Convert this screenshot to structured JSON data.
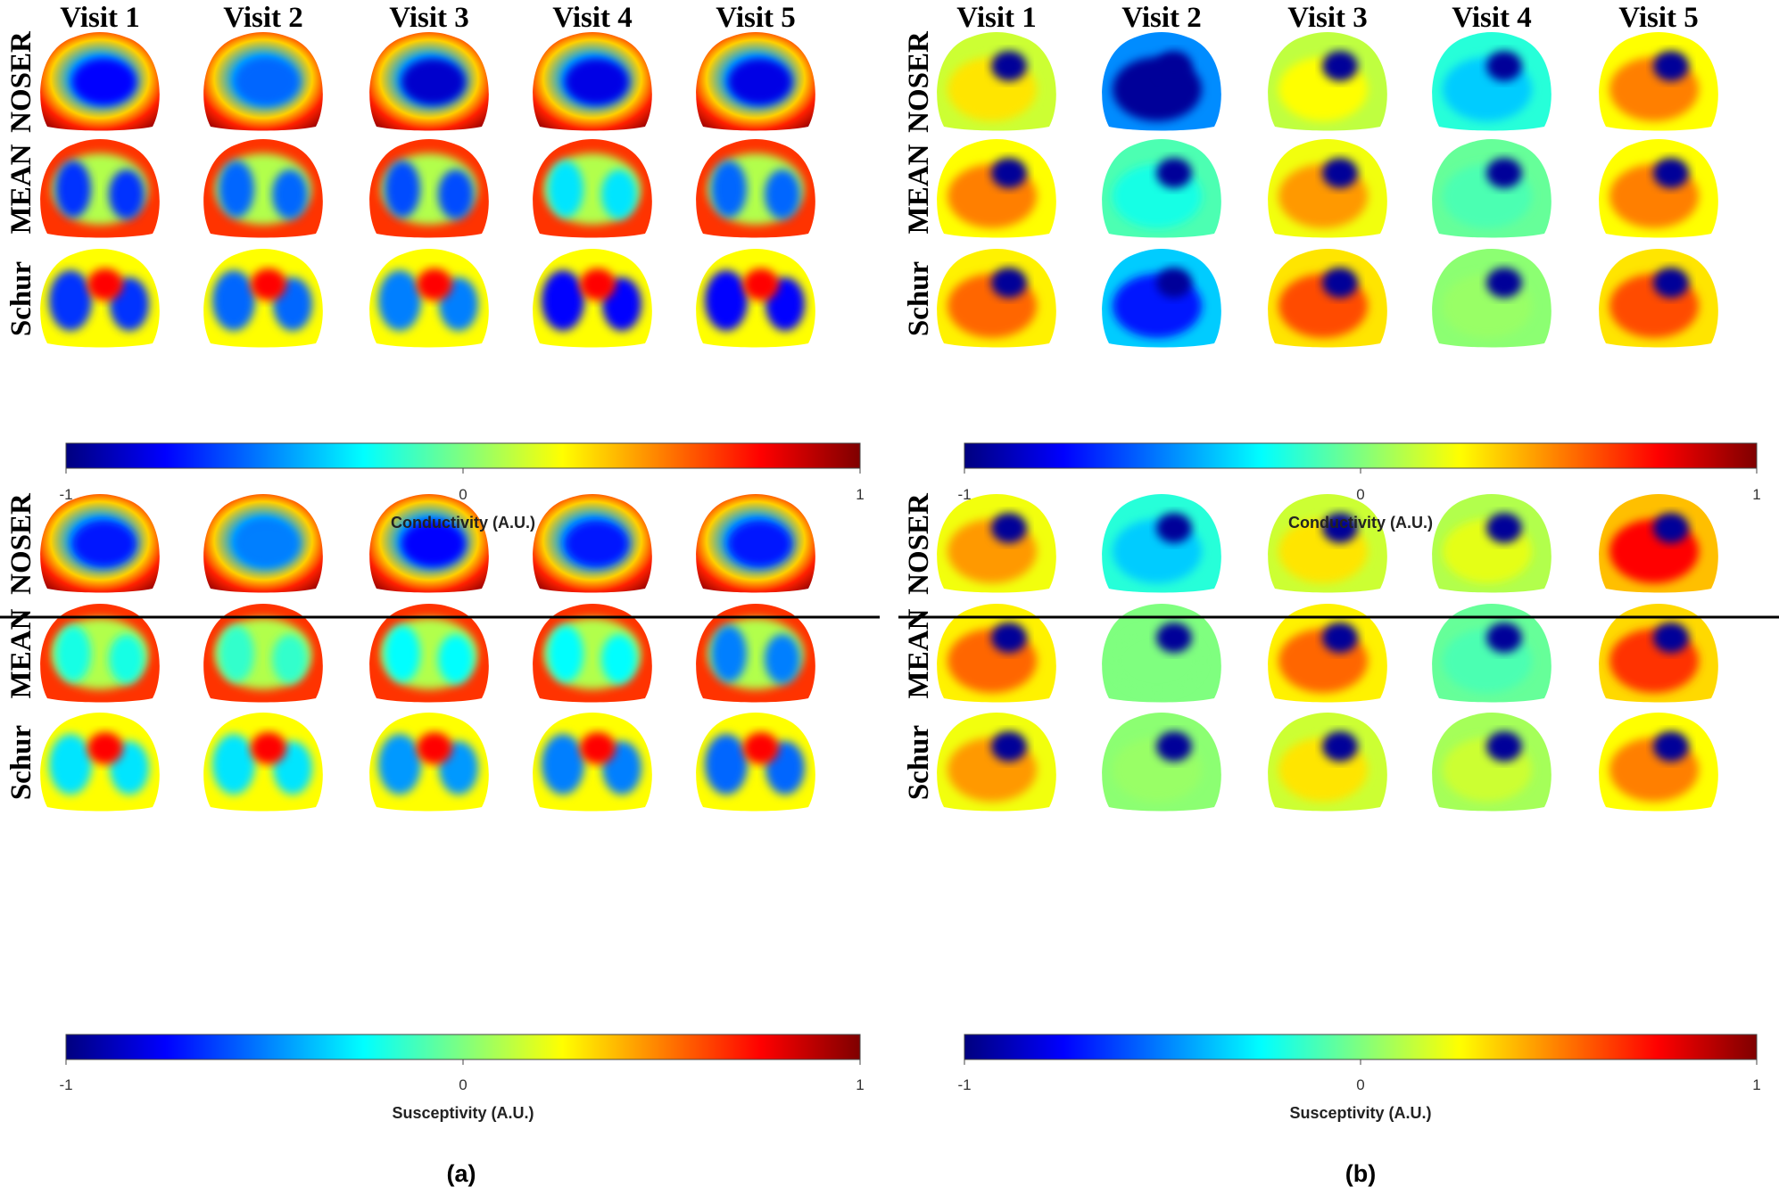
{
  "figure": {
    "visit_headers": [
      "Visit 1",
      "Visit 2",
      "Visit 3",
      "Visit 4",
      "Visit 5"
    ],
    "row_labels": [
      "NOSER",
      "MEAN",
      "Schur"
    ],
    "panel_labels": [
      "(a)",
      "(b)"
    ],
    "colormap": "jet",
    "colormap_stops": [
      "#00007f",
      "#0000ff",
      "#007fff",
      "#00ffff",
      "#7fff7f",
      "#ffff00",
      "#ff7f00",
      "#ff0000",
      "#7f0000"
    ],
    "colorbar_ticks": [
      "-1",
      "0",
      "1"
    ],
    "colorbar_range": [
      -1,
      1
    ],
    "quadrants": [
      {
        "panel": "a",
        "quantity": "Conductivity (A.U.)",
        "images": [
          [
            "ring-hot",
            "ring-hot",
            "ring-hot",
            "ring-hot",
            "ring-hot"
          ],
          [
            "lungs-cool",
            "lungs-cool",
            "lungs-cool",
            "lungs-cool",
            "lungs-cool"
          ],
          [
            "heart-hot",
            "heart-hot",
            "heart-hot",
            "heart-hot",
            "heart-hot"
          ]
        ]
      },
      {
        "panel": "b",
        "quantity": "Conductivity (A.U.)",
        "images": [
          [
            "spot-cold",
            "spot-cold",
            "spot-cold",
            "spot-cold",
            "spot-cold"
          ],
          [
            "spot-cold",
            "spot-cold",
            "spot-cold",
            "spot-cold",
            "spot-cold"
          ],
          [
            "spot-cold",
            "spot-cold",
            "spot-cold",
            "spot-cold",
            "spot-cold"
          ]
        ]
      },
      {
        "panel": "a",
        "quantity": "Susceptivity (A.U.)",
        "images": [
          [
            "ring-hot",
            "ring-hot",
            "ring-hot",
            "ring-hot",
            "ring-hot"
          ],
          [
            "lungs-cool",
            "lungs-cool",
            "lungs-cool",
            "lungs-cool",
            "lungs-cool"
          ],
          [
            "heart-hot",
            "heart-hot",
            "heart-hot",
            "heart-hot",
            "heart-hot"
          ]
        ]
      },
      {
        "panel": "b",
        "quantity": "Susceptivity (A.U.)",
        "images": [
          [
            "spot-cold",
            "spot-cold",
            "spot-cold",
            "spot-cold",
            "spot-cold"
          ],
          [
            "spot-cold",
            "spot-cold",
            "spot-cold",
            "spot-cold",
            "spot-cold"
          ],
          [
            "spot-cold",
            "spot-cold",
            "spot-cold",
            "spot-cold",
            "spot-cold"
          ]
        ]
      }
    ],
    "image_scalars": [
      [
        [
          -0.75,
          -0.55,
          -0.85,
          -0.8,
          -0.8
        ],
        [
          -0.65,
          -0.55,
          -0.6,
          -0.3,
          -0.55
        ],
        [
          -0.65,
          -0.55,
          -0.5,
          -0.75,
          -0.75
        ]
      ],
      [
        [
          0.3,
          -0.95,
          0.25,
          -0.35,
          0.5
        ],
        [
          0.5,
          -0.2,
          0.45,
          -0.1,
          0.5
        ],
        [
          0.55,
          -0.7,
          0.6,
          0.05,
          0.6
        ]
      ],
      [
        [
          -0.7,
          -0.5,
          -0.75,
          -0.7,
          -0.7
        ],
        [
          -0.2,
          -0.15,
          -0.25,
          -0.25,
          -0.5
        ],
        [
          -0.3,
          -0.3,
          -0.45,
          -0.5,
          -0.55
        ]
      ],
      [
        [
          0.45,
          -0.35,
          0.3,
          0.2,
          0.75
        ],
        [
          0.55,
          0.0,
          0.55,
          -0.1,
          0.65
        ],
        [
          0.45,
          0.05,
          0.3,
          0.15,
          0.5
        ]
      ]
    ]
  }
}
